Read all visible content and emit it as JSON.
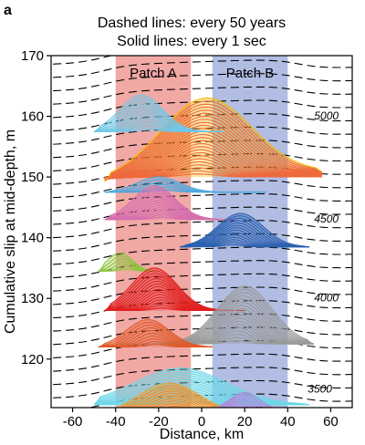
{
  "chart_data": {
    "type": "line",
    "panel_label": "a",
    "header_lines": [
      "Dashed lines: every 50 years",
      "Solid lines: every 1 sec"
    ],
    "xlabel": "Distance, km",
    "ylabel": "Cumulative slip at mid-depth, m",
    "xlim": [
      -70,
      70
    ],
    "ylim": [
      112,
      170
    ],
    "x_ticks": [
      -60,
      -40,
      -20,
      0,
      20,
      40,
      60
    ],
    "x_tick_labels": [
      "-60",
      "-40",
      "-20",
      "0",
      "20",
      "40",
      "60"
    ],
    "y_ticks": [
      120,
      130,
      140,
      150,
      160,
      170
    ],
    "y_tick_labels": [
      "120",
      "130",
      "140",
      "150",
      "160",
      "170"
    ],
    "patches": [
      {
        "label": "Patch A",
        "x_range": [
          -40,
          -5
        ],
        "color": "#f0a09c"
      },
      {
        "label": "Patch B",
        "x_range": [
          5,
          40
        ],
        "color": "#aab6e0"
      }
    ],
    "interseismic_lines": {
      "style": "dashed",
      "interval_years": 50,
      "color": "#000000"
    },
    "year_labels": [
      {
        "text": "5000",
        "x": 58,
        "y": 159.5
      },
      {
        "text": "4500",
        "x": 58,
        "y": 142.5
      },
      {
        "text": "4000",
        "x": 58,
        "y": 129.5
      },
      {
        "text": "3500",
        "x": 55,
        "y": 114.5
      }
    ],
    "events": [
      {
        "color": "#f5b800",
        "line_color": "#ee6a3c",
        "lines": 26,
        "base": [
          -45,
          56,
          150.0
        ],
        "center": 2,
        "peak": 13.0,
        "width": 30,
        "skew": 0.08
      },
      {
        "color": "#6fc8e8",
        "line_color": "#6fc8e8",
        "lines": 12,
        "base": [
          -50,
          10,
          157.5
        ],
        "center": -28,
        "peak": 6.0,
        "width": 14,
        "skew": 0.0
      },
      {
        "color": "#4aa8dc",
        "line_color": "#4aa8dc",
        "lines": 6,
        "base": [
          -45,
          30,
          147.5
        ],
        "center": -20,
        "peak": 2.5,
        "width": 14,
        "skew": 0.0
      },
      {
        "color": "#d66fae",
        "line_color": "#d66fae",
        "lines": 14,
        "base": [
          -45,
          15,
          143.0
        ],
        "center": -22,
        "peak": 5.5,
        "width": 14,
        "skew": 0.0
      },
      {
        "color": "#2b60b0",
        "line_color": "#2b60b0",
        "lines": 14,
        "base": [
          -10,
          50,
          138.5
        ],
        "center": 18,
        "peak": 5.5,
        "width": 15,
        "skew": 0.0
      },
      {
        "color": "#8ec63f",
        "line_color": "#8ec63f",
        "lines": 6,
        "base": [
          -48,
          -22,
          134.5
        ],
        "center": -38,
        "peak": 3.0,
        "width": 8,
        "skew": 0.0
      },
      {
        "color": "#e02020",
        "line_color": "#e02020",
        "lines": 16,
        "base": [
          -45,
          20,
          128.0
        ],
        "center": -22,
        "peak": 7.0,
        "width": 15,
        "skew": 0.0
      },
      {
        "color": "#9a9a9a",
        "line_color": "#9a9a9a",
        "lines": 18,
        "base": [
          -38,
          52,
          122.5
        ],
        "center": 20,
        "peak": 9.5,
        "width": 18,
        "skew": 0.0
      },
      {
        "color": "#e05a2a",
        "line_color": "#e05a2a",
        "lines": 10,
        "base": [
          -48,
          5,
          122.0
        ],
        "center": -25,
        "peak": 4.5,
        "width": 14,
        "skew": 0.0
      },
      {
        "color": "#6fd8e8",
        "line_color": "#6fd8e8",
        "lines": 16,
        "base": [
          -50,
          50,
          112.5
        ],
        "center": -10,
        "peak": 6.0,
        "width": 30,
        "skew": 0.0
      },
      {
        "color": "#f2a030",
        "line_color": "#f08a20",
        "lines": 12,
        "base": [
          -40,
          30,
          111.0
        ],
        "center": -15,
        "peak": 5.0,
        "width": 20,
        "skew": 0.0
      },
      {
        "color": "#b088d8",
        "line_color": "#b088d8",
        "lines": 8,
        "base": [
          5,
          40,
          111.5
        ],
        "center": 20,
        "peak": 3.0,
        "width": 10,
        "skew": 0.0
      }
    ]
  }
}
